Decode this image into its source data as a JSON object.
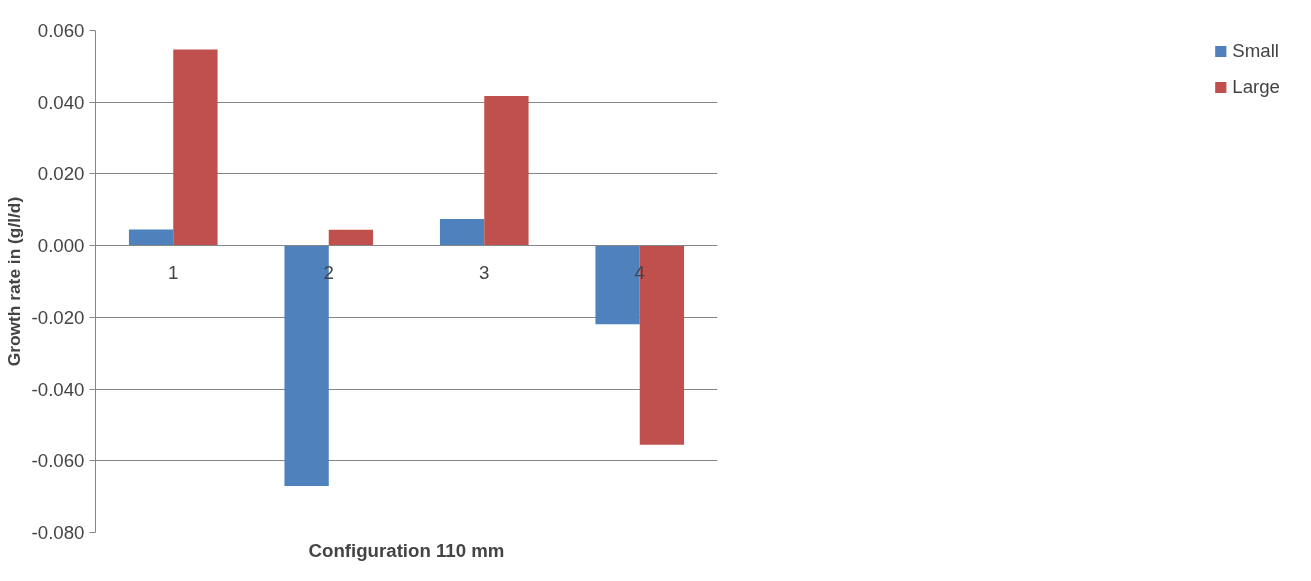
{
  "chart_data": {
    "type": "bar",
    "xlabel": "Configuration 110 mm",
    "ylabel": "Growth rate in (g/l/d)",
    "categories": [
      "1",
      "2",
      "3",
      "4"
    ],
    "series": [
      {
        "name": "Small",
        "color": "#4f81bd",
        "values": [
          0.0045,
          -0.067,
          0.0074,
          -0.0219
        ]
      },
      {
        "name": "Large",
        "color": "#c0504d",
        "values": [
          0.0547,
          0.0044,
          0.0417,
          -0.0555
        ]
      }
    ],
    "ylim": [
      -0.08,
      0.06
    ],
    "yticks": [
      {
        "value": -0.08,
        "label": "-0.080"
      },
      {
        "value": -0.06,
        "label": "-0.060"
      },
      {
        "value": -0.04,
        "label": "-0.040"
      },
      {
        "value": -0.02,
        "label": "-0.020"
      },
      {
        "value": 0,
        "label": "0.000"
      },
      {
        "value": 0.02,
        "label": "0.020"
      },
      {
        "value": 0.04,
        "label": "0.040"
      },
      {
        "value": 0.06,
        "label": "0.060"
      }
    ],
    "grid": "y",
    "legend": "right"
  }
}
